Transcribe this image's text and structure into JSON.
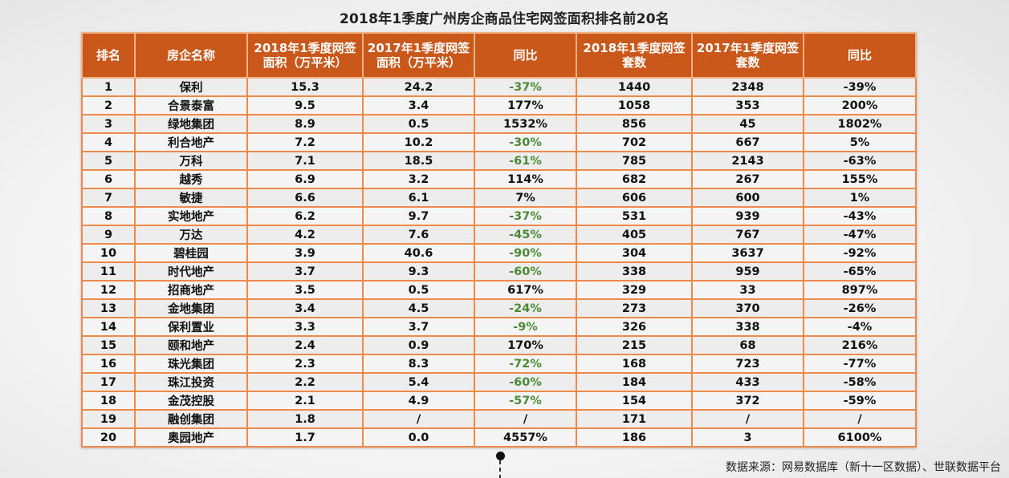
{
  "title": "2018年1季度广州房企商品住宅网签面积排名前20名",
  "columns": [
    "排名",
    "房企名称",
    "2018年1季度网签面积（万平米）",
    "2017年1季度网签面积（万平米）",
    "同比",
    "2018年1季度网签套数",
    "2017年1季度网签套数",
    "同比"
  ],
  "rows": [
    [
      "1",
      "保利",
      "15.3",
      "24.2",
      "-37%",
      "1440",
      "2348",
      "-39%"
    ],
    [
      "2",
      "合景泰富",
      "9.5",
      "3.4",
      "177%",
      "1058",
      "353",
      "200%"
    ],
    [
      "3",
      "绿地集团",
      "8.9",
      "0.5",
      "1532%",
      "856",
      "45",
      "1802%"
    ],
    [
      "4",
      "利合地产",
      "7.2",
      "10.2",
      "-30%",
      "702",
      "667",
      "5%"
    ],
    [
      "5",
      "万科",
      "7.1",
      "18.5",
      "-61%",
      "785",
      "2143",
      "-63%"
    ],
    [
      "6",
      "越秀",
      "6.9",
      "3.2",
      "114%",
      "682",
      "267",
      "155%"
    ],
    [
      "7",
      "敏捷",
      "6.6",
      "6.1",
      "7%",
      "606",
      "600",
      "1%"
    ],
    [
      "8",
      "实地地产",
      "6.2",
      "9.7",
      "-37%",
      "531",
      "939",
      "-43%"
    ],
    [
      "9",
      "万达",
      "4.2",
      "7.6",
      "-45%",
      "405",
      "767",
      "-47%"
    ],
    [
      "10",
      "碧桂园",
      "3.9",
      "40.6",
      "-90%",
      "304",
      "3637",
      "-92%"
    ],
    [
      "11",
      "时代地产",
      "3.7",
      "9.3",
      "-60%",
      "338",
      "959",
      "-65%"
    ],
    [
      "12",
      "招商地产",
      "3.5",
      "0.5",
      "617%",
      "329",
      "33",
      "897%"
    ],
    [
      "13",
      "金地集团",
      "3.4",
      "4.5",
      "-24%",
      "273",
      "370",
      "-26%"
    ],
    [
      "14",
      "保利置业",
      "3.3",
      "3.7",
      "-9%",
      "326",
      "338",
      "-4%"
    ],
    [
      "15",
      "颐和地产",
      "2.4",
      "0.9",
      "170%",
      "215",
      "68",
      "216%"
    ],
    [
      "16",
      "珠光集团",
      "2.3",
      "8.3",
      "-72%",
      "168",
      "723",
      "-77%"
    ],
    [
      "17",
      "珠江投资",
      "2.2",
      "5.4",
      "-60%",
      "184",
      "433",
      "-58%"
    ],
    [
      "18",
      "金茂控股",
      "2.1",
      "4.9",
      "-57%",
      "154",
      "372",
      "-59%"
    ],
    [
      "19",
      "融创集团",
      "1.8",
      "/",
      "/",
      "171",
      "/",
      "/"
    ],
    [
      "20",
      "奥园地产",
      "1.7",
      "0.0",
      "4557%",
      "186",
      "3",
      "6100%"
    ]
  ],
  "colors": {
    "header_bg": "#c9581a",
    "header_border": "#f3b183",
    "cell_border": "#ee8a48",
    "negative_area_yoy": "#4a8a36"
  },
  "source": "数据来源：网易数据库（新十一区数据）、世联数据平台"
}
